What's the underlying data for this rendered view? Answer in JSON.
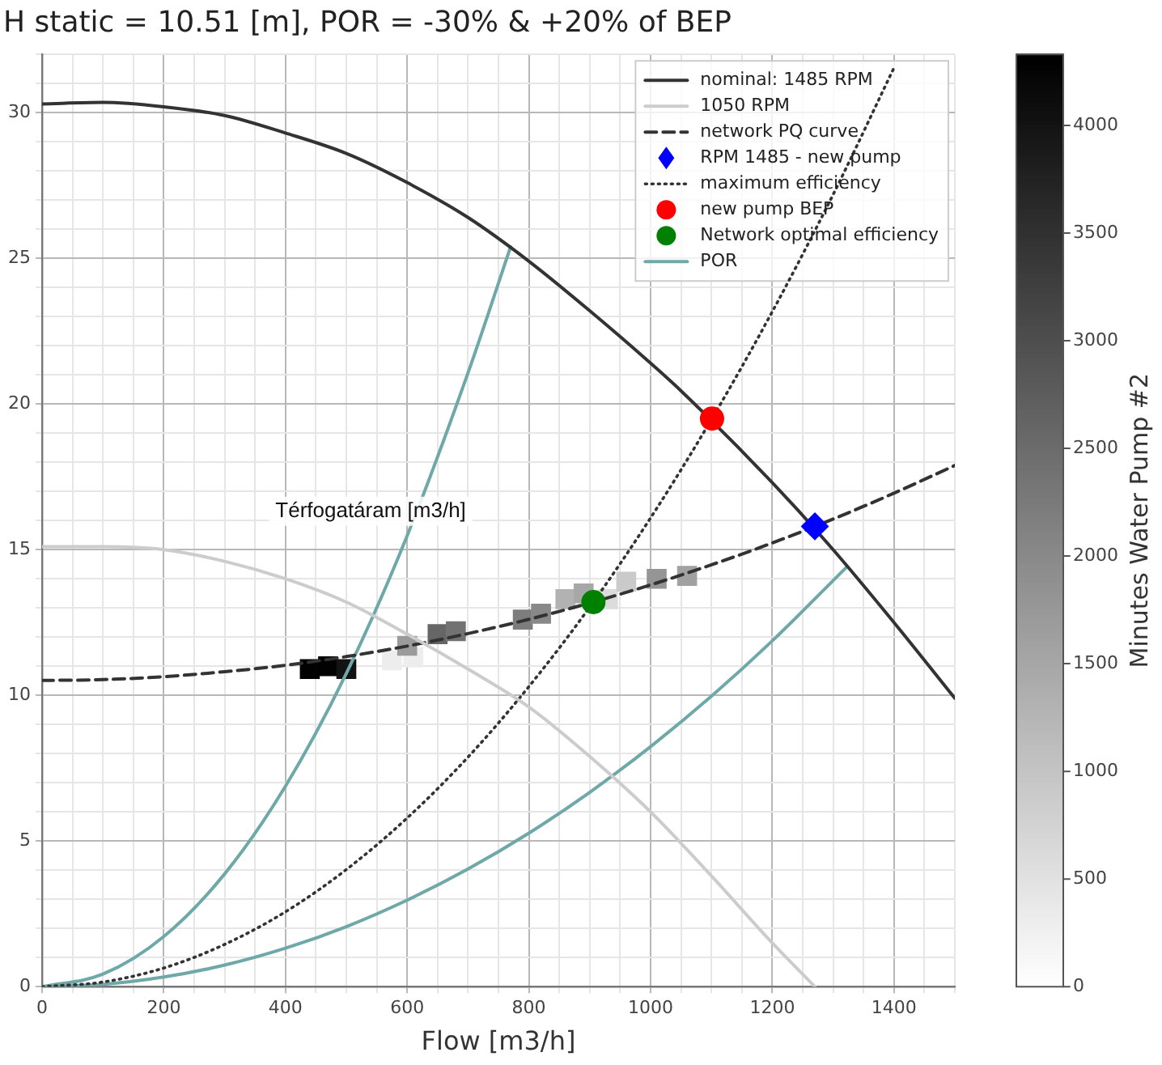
{
  "chart_data": {
    "type": "line",
    "title": "H static = 10.51 [m], POR = -30% & +20% of BEP",
    "xlabel": "Flow [m3/h]",
    "clabel": "Minutes Water Pump #2",
    "annotations": [
      "Térfogatáram [m3/h]"
    ],
    "xlim": [
      0,
      1500
    ],
    "ylim": [
      0,
      32
    ],
    "xticks": [
      0,
      {
        "value": 50,
        "label": null
      },
      200,
      {
        "value": 100,
        "label": null
      },
      {
        "value": 150,
        "label": null
      },
      {
        "value": 250,
        "label": null
      },
      {
        "value": 300,
        "label": null
      },
      {
        "value": 350,
        "label": null
      },
      400,
      {
        "value": 450,
        "label": null
      },
      {
        "value": 500,
        "label": null
      },
      {
        "value": 550,
        "label": null
      },
      600,
      {
        "value": 650,
        "label": null
      },
      {
        "value": 700,
        "label": null
      },
      {
        "value": 750,
        "label": null
      },
      800,
      {
        "value": 850,
        "label": null
      },
      {
        "value": 900,
        "label": null
      },
      {
        "value": 950,
        "label": null
      },
      1000,
      {
        "value": 1050,
        "label": null
      },
      {
        "value": 1100,
        "label": null
      },
      {
        "value": 1150,
        "label": null
      },
      1200,
      {
        "value": 1250,
        "label": null
      },
      {
        "value": 1300,
        "label": null
      },
      {
        "value": 1350,
        "label": null
      },
      1400,
      {
        "value": 1450,
        "label": null
      },
      {
        "value": 1500,
        "label": null
      }
    ],
    "yticks": [
      0,
      {
        "value": 1,
        "label": null
      },
      {
        "value": 2,
        "label": null
      },
      {
        "value": 3,
        "label": null
      },
      {
        "value": 4,
        "label": null
      },
      5,
      {
        "value": 6,
        "label": null
      },
      {
        "value": 7,
        "label": null
      },
      {
        "value": 8,
        "label": null
      },
      {
        "value": 9,
        "label": null
      },
      10,
      {
        "value": 11,
        "label": null
      },
      {
        "value": 12,
        "label": null
      },
      {
        "value": 13,
        "label": null
      },
      {
        "value": 14,
        "label": null
      },
      15,
      {
        "value": 16,
        "label": null
      },
      {
        "value": 17,
        "label": null
      },
      {
        "value": 18,
        "label": null
      },
      {
        "value": 19,
        "label": null
      },
      20,
      {
        "value": 21,
        "label": null
      },
      {
        "value": 22,
        "label": null
      },
      {
        "value": 23,
        "label": null
      },
      {
        "value": 24,
        "label": null
      },
      25,
      {
        "value": 26,
        "label": null
      },
      {
        "value": 27,
        "label": null
      },
      {
        "value": 28,
        "label": null
      },
      {
        "value": 29,
        "label": null
      },
      30,
      {
        "value": 31,
        "label": null
      },
      {
        "value": 32,
        "label": null
      }
    ],
    "clim": [
      0,
      4330
    ],
    "cticks": [
      0,
      500,
      1000,
      1500,
      2000,
      2500,
      3000,
      3500,
      4000
    ],
    "grid": true,
    "legend": "top right",
    "series": [
      {
        "name": "nominal: 1485 RPM",
        "type": "line",
        "color": "#333333",
        "line_style": "solid",
        "marker": "none",
        "x": [
          0,
          100,
          200,
          300,
          400,
          500,
          600,
          700,
          800,
          900,
          1000,
          1050,
          1200,
          1300,
          1400,
          1500
        ],
        "values": [
          30.3,
          30.35,
          30.2,
          29.9,
          29.3,
          28.6,
          27.6,
          26.4,
          24.9,
          23.2,
          21.4,
          20.45,
          17.3,
          15.0,
          12.5,
          9.9
        ]
      },
      {
        "name": "1050 RPM",
        "type": "line",
        "color": "#cccccc",
        "line_style": "solid",
        "marker": "none",
        "x": [
          0,
          100,
          200,
          300,
          400,
          500,
          600,
          700,
          800,
          900,
          1000,
          1100,
          1200,
          1270
        ],
        "values": [
          15.1,
          15.1,
          15.0,
          14.6,
          14.0,
          13.2,
          12.1,
          10.9,
          9.6,
          7.9,
          6.0,
          3.8,
          1.5,
          0
        ]
      },
      {
        "name": "network PQ curve",
        "type": "line",
        "color": "#333333",
        "line_style": "dashed",
        "marker": "none",
        "x": [
          0,
          100,
          200,
          300,
          400,
          500,
          600,
          700,
          800,
          900,
          1000,
          1100,
          1200,
          1300,
          1400,
          1500
        ],
        "values": [
          10.51,
          10.54,
          10.64,
          10.81,
          11.03,
          11.33,
          11.69,
          12.12,
          12.61,
          13.17,
          13.79,
          14.48,
          15.23,
          16.05,
          16.94,
          17.89
        ]
      },
      {
        "name": "RPM 1485 - new pump",
        "type": "scatter",
        "color": "#0000ff",
        "marker": "diamond",
        "x": [
          1270
        ],
        "values": [
          15.8
        ]
      },
      {
        "name": "maximum efficiency",
        "type": "line",
        "color": "#333333",
        "line_style": "dotted",
        "marker": "none",
        "x": [
          0,
          100,
          200,
          300,
          400,
          500,
          600,
          700,
          800,
          900,
          1000,
          1100,
          1200,
          1300,
          1400
        ],
        "values": [
          0,
          0.16,
          0.64,
          1.45,
          2.57,
          4.02,
          5.79,
          7.88,
          10.3,
          13.03,
          16.09,
          19.47,
          23.17,
          27.19,
          31.54
        ]
      },
      {
        "name": "new pump BEP",
        "type": "scatter",
        "color": "#ff0000",
        "marker": "circle",
        "x": [
          1101
        ],
        "values": [
          19.5
        ]
      },
      {
        "name": "Network optimal efficiency",
        "type": "scatter",
        "color": "#008000",
        "marker": "circle",
        "x": [
          906
        ],
        "values": [
          13.2
        ]
      },
      {
        "name": "POR",
        "type": "line",
        "color": "#6fa8a8",
        "line_style": "solid",
        "marker": "none",
        "x": [
          0,
          100,
          200,
          300,
          400,
          500,
          600,
          700,
          770
        ],
        "values": [
          0,
          0.43,
          1.72,
          3.87,
          6.88,
          10.75,
          15.48,
          21.07,
          25.4
        ]
      },
      {
        "type": "line",
        "color": "#6fa8a8",
        "line_style": "solid",
        "marker": "none",
        "x": [
          0,
          100,
          200,
          300,
          400,
          500,
          600,
          700,
          800,
          900,
          1000,
          1100,
          1200,
          1322
        ],
        "values": [
          0,
          0.08,
          0.33,
          0.74,
          1.32,
          2.06,
          2.97,
          4.04,
          5.27,
          6.67,
          8.24,
          9.97,
          11.87,
          14.4
        ]
      },
      {
        "type": "scatter",
        "marker": "square",
        "colors": [
          "#020202",
          "#020202",
          "#131313",
          "#ededed",
          "#ededed",
          "#9b9b9b",
          "#666666",
          "#727272",
          "#7d7d7d",
          "#898989",
          "#b2b2b2",
          "#a7a7a7",
          "#dcdcdc",
          "#cacaca",
          "#959595",
          "#a1a1a1"
        ],
        "x": [
          440,
          470,
          500,
          575,
          610,
          600,
          650,
          680,
          790,
          820,
          860,
          890,
          930,
          960,
          1010,
          1060
        ],
        "values": [
          10.9,
          11.0,
          10.9,
          11.2,
          11.3,
          11.7,
          12.1,
          12.2,
          12.6,
          12.8,
          13.3,
          13.5,
          13.3,
          13.9,
          14.0,
          14.1
        ],
        "cvalues": [
          4300,
          4300,
          4000,
          300,
          300,
          1700,
          2600,
          2400,
          2200,
          2000,
          1300,
          1500,
          600,
          900,
          1800,
          1600
        ]
      }
    ]
  }
}
